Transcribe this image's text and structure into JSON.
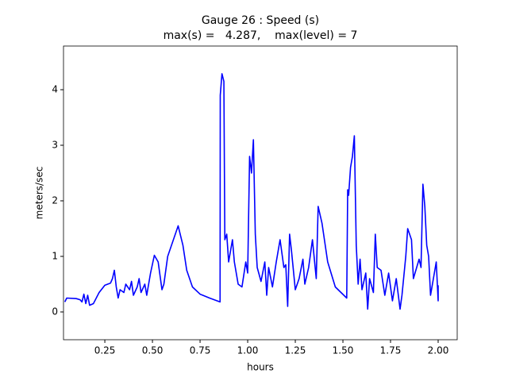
{
  "chart_data": {
    "type": "line",
    "title": "Gauge 26 : Speed (s)",
    "subtitle": "max(s) =   4.287,    max(level) = 7",
    "x_label": "hours",
    "y_label": "meters/sec",
    "xlim": [
      0.033,
      2.1
    ],
    "ylim": [
      -0.5,
      4.786
    ],
    "xticks": [
      {
        "value": 0.25,
        "label": "0.25"
      },
      {
        "value": 0.5,
        "label": "0.50"
      },
      {
        "value": 0.75,
        "label": "0.75"
      },
      {
        "value": 1.0,
        "label": "1.00"
      },
      {
        "value": 1.25,
        "label": "1.25"
      },
      {
        "value": 1.5,
        "label": "1.50"
      },
      {
        "value": 1.75,
        "label": "1.75"
      },
      {
        "value": 2.0,
        "label": "2.00"
      }
    ],
    "yticks": [
      0,
      1,
      2,
      3,
      4
    ],
    "x": [
      0.04,
      0.05,
      0.1,
      0.12,
      0.13,
      0.14,
      0.15,
      0.16,
      0.17,
      0.19,
      0.22,
      0.25,
      0.28,
      0.29,
      0.3,
      0.31,
      0.32,
      0.33,
      0.35,
      0.36,
      0.38,
      0.39,
      0.4,
      0.42,
      0.43,
      0.44,
      0.46,
      0.47,
      0.49,
      0.51,
      0.53,
      0.54,
      0.55,
      0.56,
      0.58,
      0.61,
      0.635,
      0.66,
      0.68,
      0.71,
      0.75,
      0.8,
      0.855,
      0.856,
      0.865,
      0.875,
      0.88,
      0.89,
      0.9,
      0.92,
      0.93,
      0.95,
      0.97,
      0.99,
      1.0,
      1.01,
      1.02,
      1.03,
      1.04,
      1.05,
      1.07,
      1.09,
      1.1,
      1.11,
      1.13,
      1.15,
      1.17,
      1.19,
      1.2,
      1.21,
      1.22,
      1.23,
      1.25,
      1.27,
      1.29,
      1.3,
      1.32,
      1.34,
      1.36,
      1.37,
      1.39,
      1.42,
      1.46,
      1.52,
      1.525,
      1.53,
      1.54,
      1.55,
      1.56,
      1.57,
      1.58,
      1.59,
      1.6,
      1.62,
      1.63,
      1.64,
      1.66,
      1.67,
      1.68,
      1.7,
      1.72,
      1.74,
      1.76,
      1.78,
      1.8,
      1.81,
      1.83,
      1.84,
      1.86,
      1.87,
      1.9,
      1.91,
      1.92,
      1.93,
      1.94,
      1.95,
      1.96,
      1.97,
      1.99,
      2.0,
      2.0
    ],
    "series": [
      {
        "name": "speed",
        "color": "#0000ff",
        "values": [
          0.18,
          0.25,
          0.24,
          0.22,
          0.18,
          0.32,
          0.15,
          0.3,
          0.12,
          0.15,
          0.35,
          0.48,
          0.52,
          0.6,
          0.75,
          0.45,
          0.25,
          0.4,
          0.35,
          0.5,
          0.4,
          0.55,
          0.3,
          0.45,
          0.6,
          0.35,
          0.5,
          0.3,
          0.7,
          1.02,
          0.9,
          0.65,
          0.4,
          0.5,
          1.0,
          1.3,
          1.55,
          1.2,
          0.75,
          0.45,
          0.32,
          0.25,
          0.18,
          3.9,
          4.287,
          4.15,
          1.3,
          1.4,
          0.9,
          1.3,
          0.9,
          0.5,
          0.45,
          0.9,
          0.7,
          2.8,
          2.5,
          3.1,
          1.4,
          0.8,
          0.55,
          0.9,
          0.3,
          0.8,
          0.45,
          0.9,
          1.3,
          0.8,
          0.85,
          0.1,
          1.4,
          1.1,
          0.4,
          0.6,
          0.95,
          0.5,
          0.8,
          1.3,
          0.6,
          1.9,
          1.6,
          0.9,
          0.45,
          0.25,
          2.2,
          2.1,
          2.6,
          2.8,
          3.17,
          1.2,
          0.5,
          0.95,
          0.4,
          0.7,
          0.05,
          0.6,
          0.35,
          1.4,
          0.8,
          0.75,
          0.3,
          0.7,
          0.2,
          0.6,
          0.05,
          0.3,
          1.0,
          1.5,
          1.3,
          0.6,
          0.95,
          0.8,
          2.3,
          1.9,
          1.2,
          1.0,
          0.3,
          0.5,
          0.9,
          0.2,
          0.48
        ]
      }
    ]
  }
}
